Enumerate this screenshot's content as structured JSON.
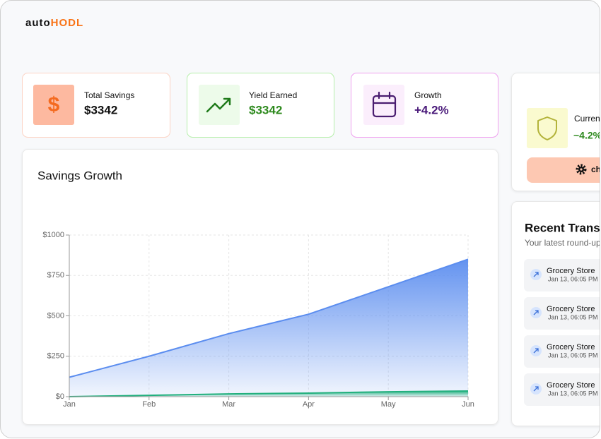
{
  "logo": {
    "text": "auto",
    "accent": "HODL"
  },
  "stats": [
    {
      "label": "Total Savings",
      "value": "$3342"
    },
    {
      "label": "Yield Earned",
      "value": "$3342"
    },
    {
      "label": "Growth",
      "value": "+4.2%"
    }
  ],
  "protection": {
    "label": "Current",
    "value": "~4.2%",
    "button": "ch"
  },
  "chart_data": {
    "type": "area",
    "title": "Savings Growth",
    "categories": [
      "Jan",
      "Feb",
      "Mar",
      "Apr",
      "May",
      "Jun"
    ],
    "series": [
      {
        "color": "#5b8def",
        "values": [
          120,
          250,
          390,
          510,
          680,
          850
        ]
      },
      {
        "color": "#22b07d",
        "values": [
          0,
          8,
          17,
          22,
          30,
          35
        ]
      }
    ],
    "ylim": [
      0,
      1000
    ],
    "yticks": [
      {
        "value": 0,
        "label": "$0"
      },
      {
        "value": 250,
        "label": "$250"
      },
      {
        "value": 500,
        "label": "$500"
      },
      {
        "value": 750,
        "label": "$750"
      },
      {
        "value": 1000,
        "label": "$1000"
      }
    ],
    "grid": true
  },
  "transactions": {
    "title": "Recent Transa",
    "subtitle": "Your latest round-up",
    "items": [
      {
        "name": "Grocery Store",
        "date": "Jan 13, 06:05 PM"
      },
      {
        "name": "Grocery Store",
        "date": "Jan 13, 06:05 PM"
      },
      {
        "name": "Grocery Store",
        "date": "Jan 13, 06:05 PM"
      },
      {
        "name": "Grocery Store",
        "date": "Jan 13, 06:05 PM"
      }
    ]
  }
}
